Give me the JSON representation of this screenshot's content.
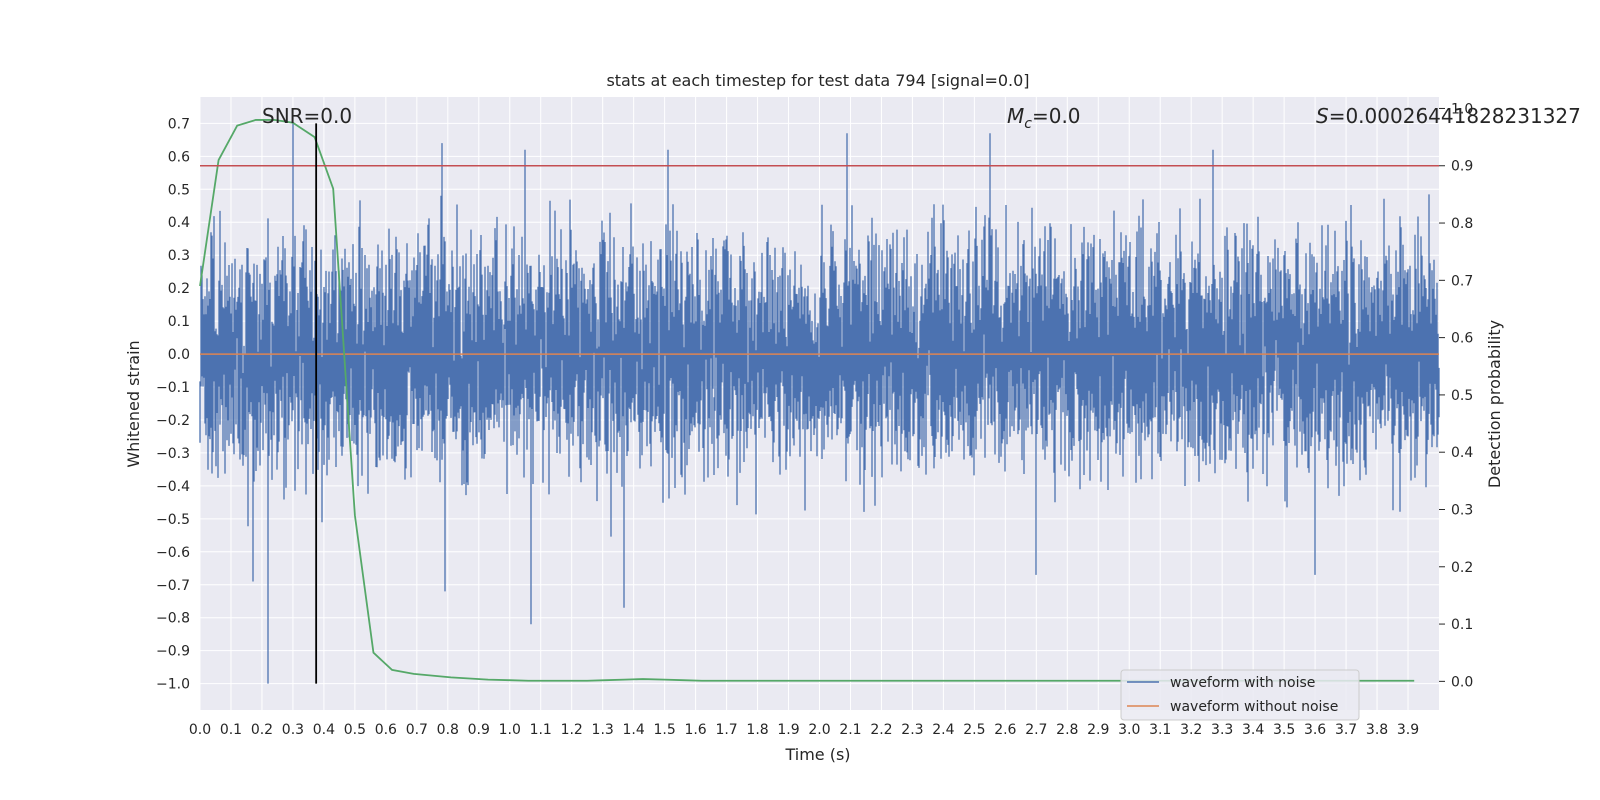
{
  "chart_data": {
    "type": "line",
    "title": "stats at each timestep for test data 794 [signal=0.0]",
    "xlabel": "Time (s)",
    "ylabel": "Whitened strain",
    "y2label": "Detection probability",
    "xlim": [
      0.0,
      4.0
    ],
    "ylim": [
      -1.08,
      0.78
    ],
    "y2lim": [
      -0.05,
      1.02
    ],
    "x_ticks": [
      0.0,
      0.1,
      0.2,
      0.3,
      0.4,
      0.5,
      0.6,
      0.7,
      0.8,
      0.9,
      1.0,
      1.1,
      1.2,
      1.3,
      1.4,
      1.5,
      1.6,
      1.7,
      1.8,
      1.9,
      2.0,
      2.1,
      2.2,
      2.3,
      2.4,
      2.5,
      2.6,
      2.7,
      2.8,
      2.9,
      3.0,
      3.1,
      3.2,
      3.3,
      3.4,
      3.5,
      3.6,
      3.7,
      3.8,
      3.9
    ],
    "x_tick_labels": [
      "0.0",
      "0.1",
      "0.2",
      "0.3",
      "0.4",
      "0.5",
      "0.6",
      "0.7",
      "0.8",
      "0.9",
      "1.0",
      "1.1",
      "1.2",
      "1.3",
      "1.4",
      "1.5",
      "1.6",
      "1.7",
      "1.8",
      "1.9",
      "2.0",
      "2.1",
      "2.2",
      "2.3",
      "2.4",
      "2.5",
      "2.6",
      "2.7",
      "2.8",
      "2.9",
      "3.0",
      "3.1",
      "3.2",
      "3.3",
      "3.4",
      "3.5",
      "3.6",
      "3.7",
      "3.8",
      "3.9"
    ],
    "y_ticks": [
      0.7,
      0.6,
      0.5,
      0.4,
      0.3,
      0.2,
      0.1,
      0.0,
      -0.1,
      -0.2,
      -0.3,
      -0.4,
      -0.5,
      -0.6,
      -0.7,
      -0.8,
      -0.9,
      -1.0
    ],
    "y_tick_labels": [
      "0.7",
      "0.6",
      "0.5",
      "0.4",
      "0.3",
      "0.2",
      "0.1",
      "0.0",
      "−0.1",
      "−0.2",
      "−0.3",
      "−0.4",
      "−0.5",
      "−0.6",
      "−0.7",
      "−0.8",
      "−0.9",
      "−1.0"
    ],
    "y2_ticks": [
      1.0,
      0.9,
      0.8,
      0.7,
      0.6,
      0.5,
      0.4,
      0.3,
      0.2,
      0.1,
      0.0
    ],
    "y2_tick_labels": [
      "1.0",
      "0.9",
      "0.8",
      "0.7",
      "0.6",
      "0.5",
      "0.4",
      "0.3",
      "0.2",
      "0.1",
      "0.0"
    ],
    "grid": true,
    "legend_position": "bottom-right",
    "annotations": {
      "snr": "SNR=0.0",
      "mc_symbol": "M",
      "mc_sub": "c",
      "mc_value": "=0.0",
      "s_symbol": "S",
      "s_value": "=0.00026441828231327"
    },
    "series": [
      {
        "name": "waveform with noise",
        "color": "#4c72b0",
        "axis": "left",
        "kind": "noise",
        "approx_sigma": 0.16,
        "notable_spikes": [
          {
            "x": 0.3,
            "y": 0.7
          },
          {
            "x": 0.78,
            "y": 0.64
          },
          {
            "x": 1.05,
            "y": 0.62
          },
          {
            "x": 1.51,
            "y": 0.62
          },
          {
            "x": 2.09,
            "y": 0.67
          },
          {
            "x": 2.55,
            "y": 0.67
          },
          {
            "x": 3.27,
            "y": 0.62
          },
          {
            "x": 0.22,
            "y": -1.0
          },
          {
            "x": 1.07,
            "y": -0.82
          },
          {
            "x": 1.37,
            "y": -0.77
          },
          {
            "x": 0.79,
            "y": -0.72
          },
          {
            "x": 0.17,
            "y": -0.69
          },
          {
            "x": 2.7,
            "y": -0.67
          },
          {
            "x": 3.6,
            "y": -0.67
          }
        ]
      },
      {
        "name": "waveform without noise",
        "color": "#dd8452",
        "axis": "left",
        "x": [
          0.0,
          4.0
        ],
        "y": [
          0.0,
          0.0
        ]
      },
      {
        "name": "",
        "color": "#55a868",
        "axis": "right",
        "x": [
          0.0,
          0.06,
          0.12,
          0.18,
          0.24,
          0.3,
          0.37,
          0.43,
          0.5,
          0.56,
          0.62,
          0.69,
          0.75,
          0.81,
          0.87,
          0.93,
          1.0,
          1.06,
          1.12,
          1.18,
          1.25,
          1.31,
          1.37,
          1.43,
          1.5,
          1.56,
          1.62,
          1.68,
          1.74,
          1.8,
          1.87,
          1.93,
          1.99,
          2.05,
          2.12,
          2.18,
          2.24,
          2.3,
          2.36,
          2.43,
          2.49,
          2.55,
          2.61,
          2.67,
          2.74,
          2.8,
          2.86,
          2.92,
          2.98,
          3.05,
          3.11,
          3.17,
          3.23,
          3.3,
          3.36,
          3.42,
          3.48,
          3.54,
          3.61,
          3.67,
          3.73,
          3.79,
          3.85,
          3.92
        ],
        "y": [
          0.69,
          0.91,
          0.97,
          0.98,
          0.98,
          0.975,
          0.95,
          0.86,
          0.29,
          0.05,
          0.02,
          0.013,
          0.01,
          0.007,
          0.005,
          0.003,
          0.002,
          0.001,
          0.001,
          0.001,
          0.001,
          0.002,
          0.003,
          0.004,
          0.003,
          0.002,
          0.001,
          0.001,
          0.001,
          0.001,
          0.001,
          0.001,
          0.001,
          0.001,
          0.001,
          0.001,
          0.001,
          0.001,
          0.001,
          0.001,
          0.001,
          0.001,
          0.001,
          0.001,
          0.001,
          0.001,
          0.001,
          0.001,
          0.001,
          0.001,
          0.001,
          0.001,
          0.001,
          0.001,
          0.001,
          0.001,
          0.001,
          0.001,
          0.001,
          0.001,
          0.001,
          0.001,
          0.001,
          0.001
        ]
      }
    ],
    "threshold_line": {
      "axis": "right",
      "y": 0.9,
      "color": "#c44e52"
    },
    "marker_line": {
      "x": 0.375,
      "y_range": [
        -1.0,
        0.7
      ],
      "color": "#000000"
    }
  }
}
